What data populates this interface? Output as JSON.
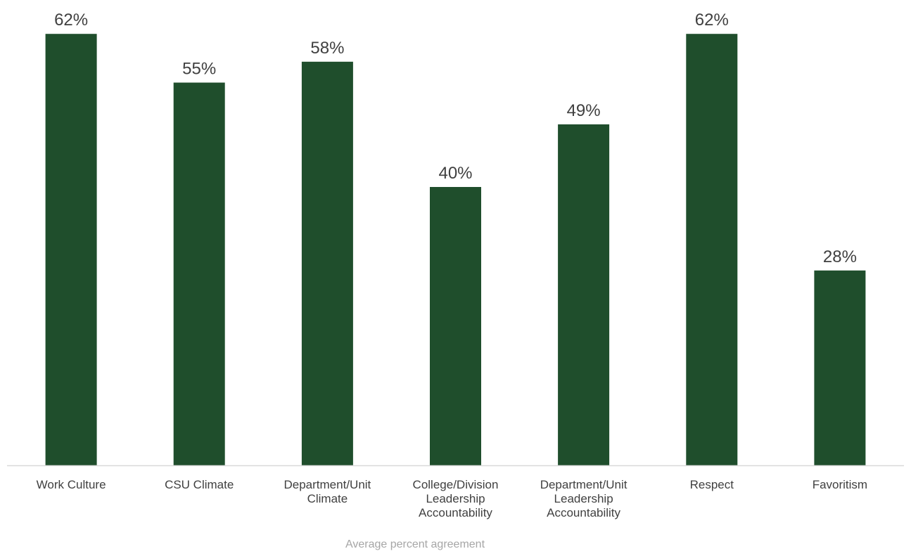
{
  "chart_data": {
    "type": "bar",
    "categories": [
      "Work Culture",
      "CSU Climate",
      "Department/Unit Climate",
      "College/Division Leadership Accountability",
      "Department/Unit Leadership Accountability",
      "Respect",
      "Favoritism"
    ],
    "category_lines": [
      [
        "Work Culture"
      ],
      [
        "CSU Climate"
      ],
      [
        "Department/Unit",
        "Climate"
      ],
      [
        "College/Division",
        "Leadership",
        "Accountability"
      ],
      [
        "Department/Unit",
        "Leadership",
        "Accountability"
      ],
      [
        "Respect"
      ],
      [
        "Favoritism"
      ]
    ],
    "values": [
      62,
      55,
      58,
      40,
      49,
      62,
      28
    ],
    "value_labels": [
      "62%",
      "55%",
      "58%",
      "40%",
      "49%",
      "62%",
      "28%"
    ],
    "title": "",
    "xlabel": "Average percent agreement",
    "ylabel": "",
    "ylim": [
      0,
      70
    ],
    "grid": false,
    "legend": "none",
    "colors": {
      "bar": "#1f4e2c",
      "axis_line": "#d9d9d9",
      "label_text": "#404040",
      "axis_title_text": "#a6a6a6"
    }
  }
}
